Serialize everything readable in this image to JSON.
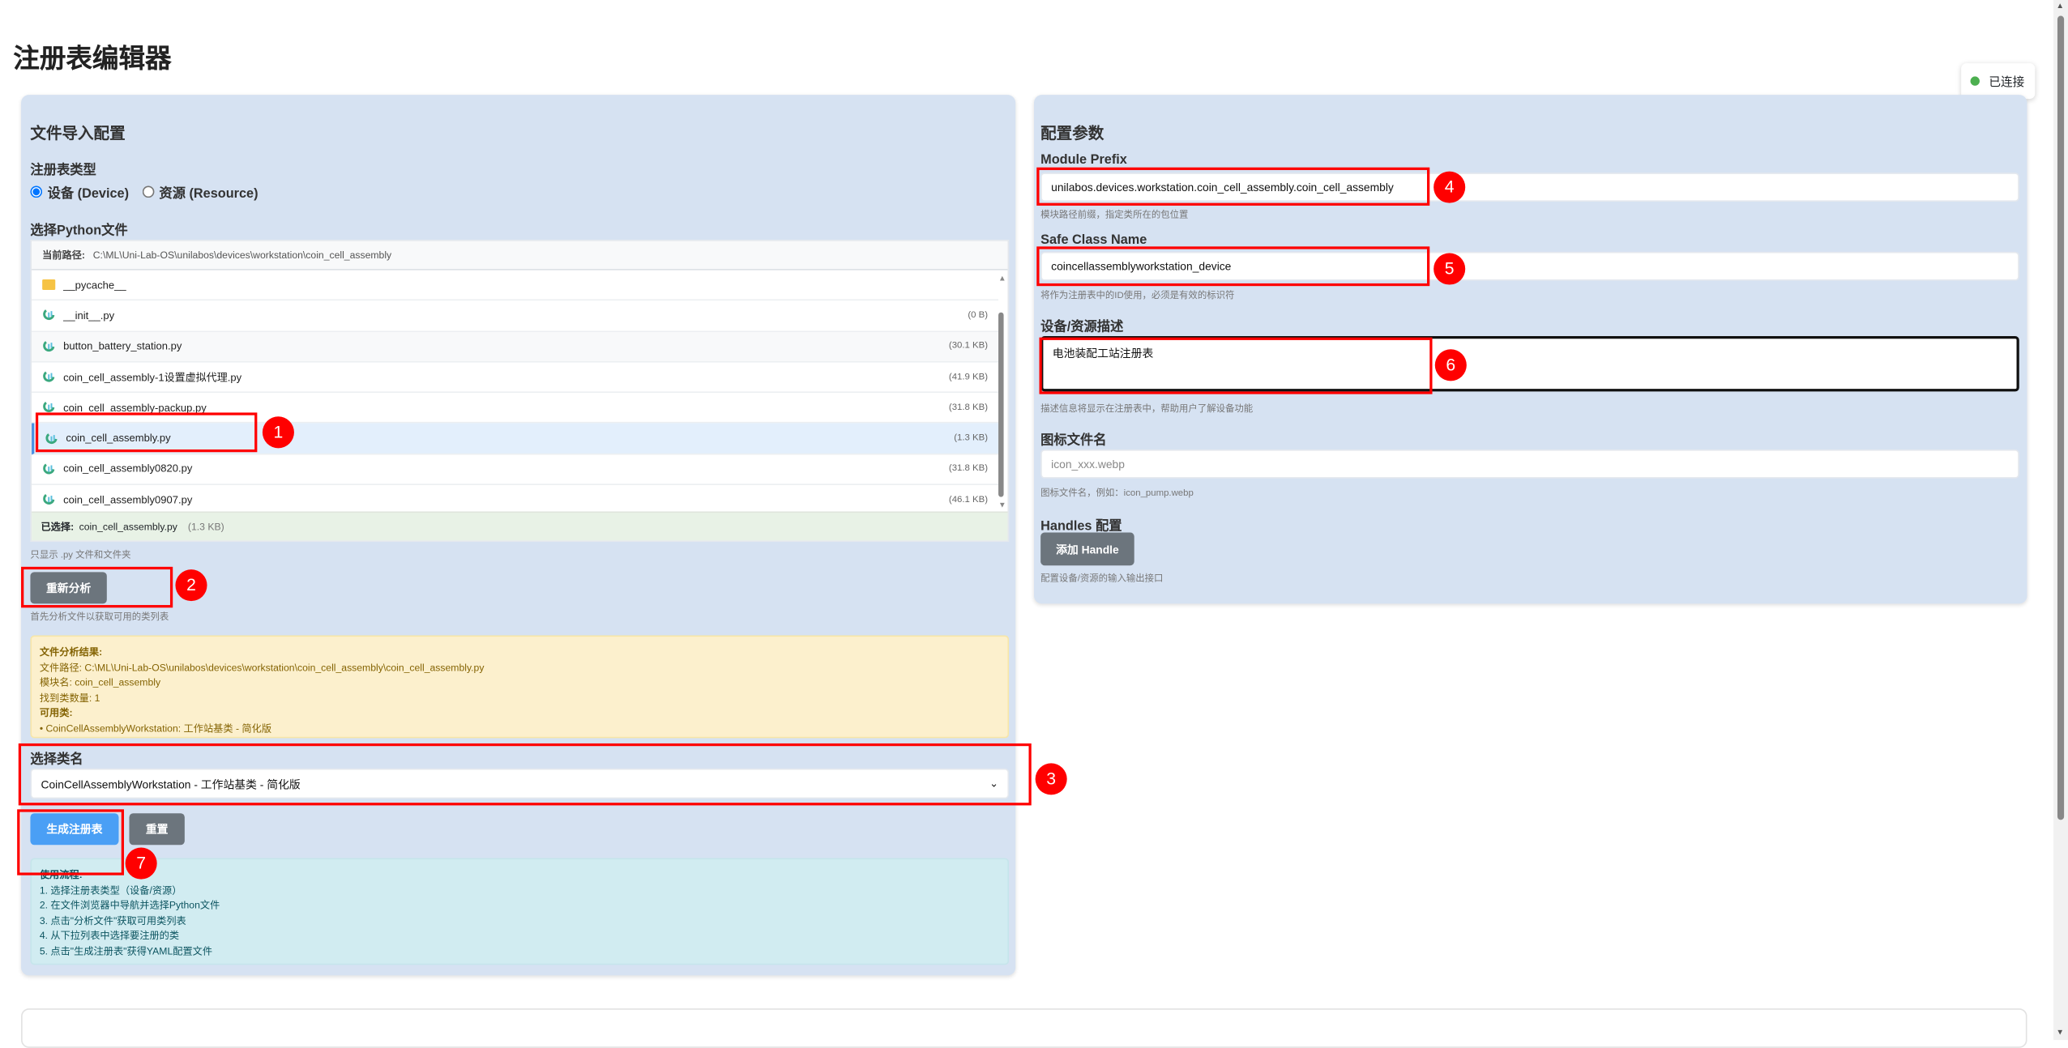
{
  "page_title": "注册表编辑器",
  "status": {
    "label": "已连接",
    "color": "#4caf50"
  },
  "left": {
    "title": "文件导入配置",
    "type_label": "注册表类型",
    "radios": [
      {
        "label": "设备 (Device)",
        "checked": true
      },
      {
        "label": "资源 (Resource)",
        "checked": false
      }
    ],
    "file_label": "选择Python文件",
    "path_label": "当前路径:",
    "path": "C:\\ML\\Uni-Lab-OS\\unilabos\\devices\\workstation\\coin_cell_assembly",
    "files": [
      {
        "name": "__pycache__",
        "size": "",
        "type": "folder-icon"
      },
      {
        "name": "__init__.py",
        "size": "(0 B)",
        "type": "python-file-icon"
      },
      {
        "name": "button_battery_station.py",
        "size": "(30.1 KB)",
        "type": "python-file-icon"
      },
      {
        "name": "coin_cell_assembly-1设置虚拟代理.py",
        "size": "(41.9 KB)",
        "type": "python-file-icon"
      },
      {
        "name": "coin_cell_assembly-packup.py",
        "size": "(31.8 KB)",
        "type": "python-file-icon"
      },
      {
        "name": "coin_cell_assembly.py",
        "size": "(1.3 KB)",
        "type": "python-file-icon",
        "selected": true
      },
      {
        "name": "coin_cell_assembly0820.py",
        "size": "(31.8 KB)",
        "type": "python-file-icon"
      },
      {
        "name": "coin_cell_assembly0907.py",
        "size": "(46.1 KB)",
        "type": "python-file-icon"
      }
    ],
    "selected_label": "已选择:",
    "selected_name": "coin_cell_assembly.py",
    "selected_size": "(1.3 KB)",
    "file_hint": "只显示 .py 文件和文件夹",
    "reanalyze": "重新分析",
    "analyze_hint": "首先分析文件以获取可用的类列表",
    "result": {
      "title": "文件分析结果:",
      "lines": [
        "文件路径: C:\\ML\\Uni-Lab-OS\\unilabos\\devices\\workstation\\coin_cell_assembly\\coin_cell_assembly.py",
        "模块名: coin_cell_assembly",
        "找到类数量: 1"
      ],
      "classes_title": "可用类:",
      "classes": [
        "• CoinCellAssemblyWorkstation: 工作站基类 - 简化版"
      ]
    },
    "class_label": "选择类名",
    "class_value": "CoinCellAssemblyWorkstation - 工作站基类 - 简化版",
    "generate": "生成注册表",
    "reset": "重置",
    "usage": {
      "title": "使用流程:",
      "steps": [
        "1. 选择注册表类型（设备/资源）",
        "2. 在文件浏览器中导航并选择Python文件",
        "3. 点击\"分析文件\"获取可用类列表",
        "4. 从下拉列表中选择要注册的类",
        "5. 点击\"生成注册表\"获得YAML配置文件"
      ]
    }
  },
  "right": {
    "title": "配置参数",
    "module_prefix": {
      "label": "Module Prefix",
      "value": "unilabos.devices.workstation.coin_cell_assembly.coin_cell_assembly",
      "hint": "模块路径前缀，指定类所在的包位置"
    },
    "safe_class": {
      "label": "Safe Class Name",
      "value": "coincellassemblyworkstation_device",
      "hint": "将作为注册表中的ID使用，必须是有效的标识符"
    },
    "description": {
      "label": "设备/资源描述",
      "value": "电池装配工站注册表",
      "hint": "描述信息将显示在注册表中，帮助用户了解设备功能"
    },
    "icon": {
      "label": "图标文件名",
      "placeholder": "icon_xxx.webp",
      "hint": "图标文件名，例如：icon_pump.webp"
    },
    "handles": {
      "label": "Handles 配置",
      "button": "添加 Handle",
      "hint": "配置设备/资源的输入输出接口"
    }
  },
  "annotations": [
    "1",
    "2",
    "3",
    "4",
    "5",
    "6",
    "7"
  ]
}
